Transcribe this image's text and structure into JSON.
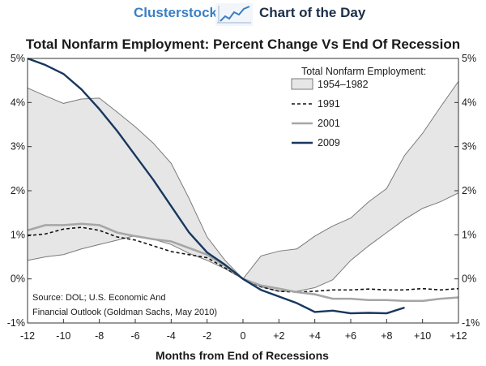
{
  "header": {
    "brand": "Clusterstock",
    "label": "Chart of the Day",
    "logo_icon": "rising-line-chart-icon"
  },
  "colors": {
    "band_fill": "#e6e6e6",
    "band_stroke": "#7a7a7a",
    "s1991": "#111111",
    "s2001": "#a6a6a6",
    "s2009": "#17375e",
    "brand": "#3a7fc4"
  },
  "chart_data": {
    "type": "line",
    "title": "Total Nonfarm Employment: Percent Change Vs End Of Recession",
    "xlabel": "Months from End of Recessions",
    "ylabel": "",
    "xlim": [
      -12,
      12
    ],
    "ylim": [
      -1,
      5
    ],
    "x_ticks": [
      "-12",
      "-10",
      "-8",
      "-6",
      "-4",
      "-2",
      "0",
      "+2",
      "+4",
      "+6",
      "+8",
      "+10",
      "+12"
    ],
    "y_ticks": [
      "-1%",
      "0%",
      "1%",
      "2%",
      "3%",
      "4%",
      "5%"
    ],
    "legend_title": "Total Nonfarm Employment:",
    "legend_position": "top-right",
    "grid": false,
    "band": {
      "name": "1954–1982",
      "x": [
        -12,
        -11,
        -10,
        -9,
        -8,
        -7,
        -6,
        -5,
        -4,
        -3,
        -2,
        -1,
        0,
        1,
        2,
        3,
        4,
        5,
        6,
        7,
        8,
        9,
        10,
        11,
        12
      ],
      "upper": [
        4.33,
        4.15,
        3.98,
        4.08,
        4.1,
        3.78,
        3.45,
        3.08,
        2.62,
        1.82,
        0.95,
        0.42,
        0.0,
        0.52,
        0.63,
        0.68,
        0.97,
        1.2,
        1.38,
        1.75,
        2.05,
        2.8,
        3.3,
        3.9,
        4.48
      ],
      "lower": [
        0.42,
        0.5,
        0.55,
        0.68,
        0.78,
        0.88,
        0.98,
        0.9,
        0.78,
        0.58,
        0.42,
        0.23,
        0.0,
        -0.18,
        -0.28,
        -0.28,
        -0.2,
        -0.02,
        0.42,
        0.75,
        1.05,
        1.35,
        1.6,
        1.75,
        1.95
      ]
    },
    "series": [
      {
        "name": "1991",
        "style": "dashed",
        "x": [
          -12,
          -11,
          -10,
          -9,
          -8,
          -7,
          -6,
          -5,
          -4,
          -3,
          -2,
          -1,
          0,
          1,
          2,
          3,
          4,
          5,
          6,
          7,
          8,
          9,
          10,
          11,
          12
        ],
        "values": [
          0.98,
          1.02,
          1.13,
          1.17,
          1.1,
          0.95,
          0.88,
          0.75,
          0.62,
          0.55,
          0.48,
          0.25,
          0.0,
          -0.18,
          -0.28,
          -0.3,
          -0.28,
          -0.25,
          -0.25,
          -0.23,
          -0.25,
          -0.25,
          -0.22,
          -0.25,
          -0.22
        ]
      },
      {
        "name": "2001",
        "style": "solid",
        "x": [
          -12,
          -11,
          -10,
          -9,
          -8,
          -7,
          -6,
          -5,
          -4,
          -3,
          -2,
          -1,
          0,
          1,
          2,
          3,
          4,
          5,
          6,
          7,
          8,
          9,
          10,
          11,
          12
        ],
        "values": [
          1.1,
          1.22,
          1.22,
          1.25,
          1.22,
          1.05,
          0.97,
          0.9,
          0.85,
          0.7,
          0.55,
          0.3,
          0.0,
          -0.15,
          -0.22,
          -0.3,
          -0.35,
          -0.45,
          -0.45,
          -0.48,
          -0.48,
          -0.5,
          -0.5,
          -0.45,
          -0.42
        ]
      },
      {
        "name": "2009",
        "style": "solid",
        "x": [
          -12,
          -11,
          -10,
          -9,
          -8,
          -7,
          -6,
          -5,
          -4,
          -3,
          -2,
          -1,
          0,
          1,
          2,
          3,
          4,
          5,
          6,
          7,
          8,
          9
        ],
        "values": [
          5.0,
          4.85,
          4.65,
          4.3,
          3.85,
          3.35,
          2.8,
          2.25,
          1.65,
          1.05,
          0.6,
          0.32,
          0.0,
          -0.25,
          -0.4,
          -0.55,
          -0.75,
          -0.72,
          -0.78,
          -0.77,
          -0.78,
          -0.65
        ]
      }
    ],
    "annotation": [
      "Source: DOL; U.S. Economic And",
      "Financial Outlook (Goldman Sachs, May 2010)"
    ]
  }
}
